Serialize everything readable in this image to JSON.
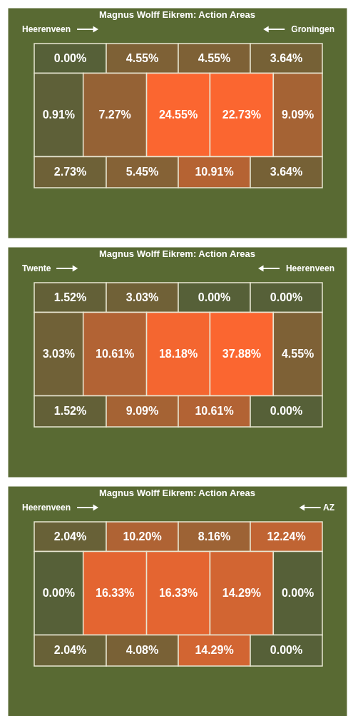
{
  "chart_data": [
    {
      "type": "other",
      "title": "Magnus Wolff Eikrem: Action Areas",
      "annotations": [
        "Heerenveen",
        "Groningen"
      ],
      "values": [
        0.0,
        4.55,
        4.55,
        3.64,
        0.91,
        7.27,
        24.55,
        22.73,
        9.09,
        2.73,
        5.45,
        10.91,
        3.64
      ],
      "value_labels": [
        "0.00%",
        "4.55%",
        "4.55%",
        "3.64%",
        "0.91%",
        "7.27%",
        "24.55%",
        "22.73%",
        "9.09%",
        "2.73%",
        "5.45%",
        "10.91%",
        "3.64%"
      ]
    },
    {
      "type": "other",
      "title": "Magnus Wolff Eikrem: Action Areas",
      "annotations": [
        "Twente",
        "Heerenveen"
      ],
      "values": [
        1.52,
        3.03,
        0.0,
        0.0,
        3.03,
        10.61,
        18.18,
        37.88,
        4.55,
        1.52,
        9.09,
        10.61,
        0.0
      ],
      "value_labels": [
        "1.52%",
        "3.03%",
        "0.00%",
        "0.00%",
        "3.03%",
        "10.61%",
        "18.18%",
        "37.88%",
        "4.55%",
        "1.52%",
        "9.09%",
        "10.61%",
        "0.00%"
      ]
    },
    {
      "type": "other",
      "title": "Magnus Wolff Eikrem: Action Areas",
      "annotations": [
        "Heerenveen",
        "AZ"
      ],
      "values": [
        2.04,
        10.2,
        8.16,
        12.24,
        0.0,
        16.33,
        16.33,
        14.29,
        0.0,
        2.04,
        4.08,
        14.29,
        0.0
      ],
      "value_labels": [
        "2.04%",
        "10.20%",
        "8.16%",
        "12.24%",
        "0.00%",
        "16.33%",
        "16.33%",
        "14.29%",
        "0.00%",
        "2.04%",
        "4.08%",
        "14.29%",
        "0.00%"
      ]
    }
  ]
}
